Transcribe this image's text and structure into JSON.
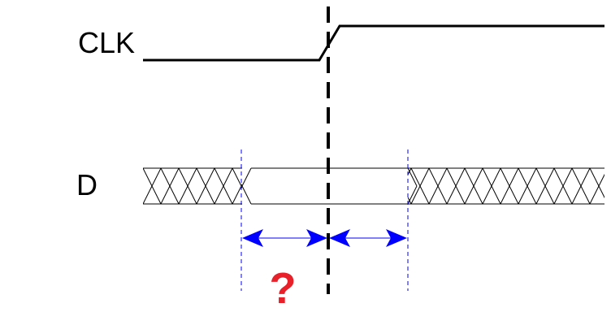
{
  "labels": {
    "clock": "CLK",
    "data": "D",
    "unknown": "?"
  },
  "colors": {
    "line": "#000000",
    "arrow": "#0000ff",
    "question": "#e8202a",
    "guide": "#0000ff"
  }
}
